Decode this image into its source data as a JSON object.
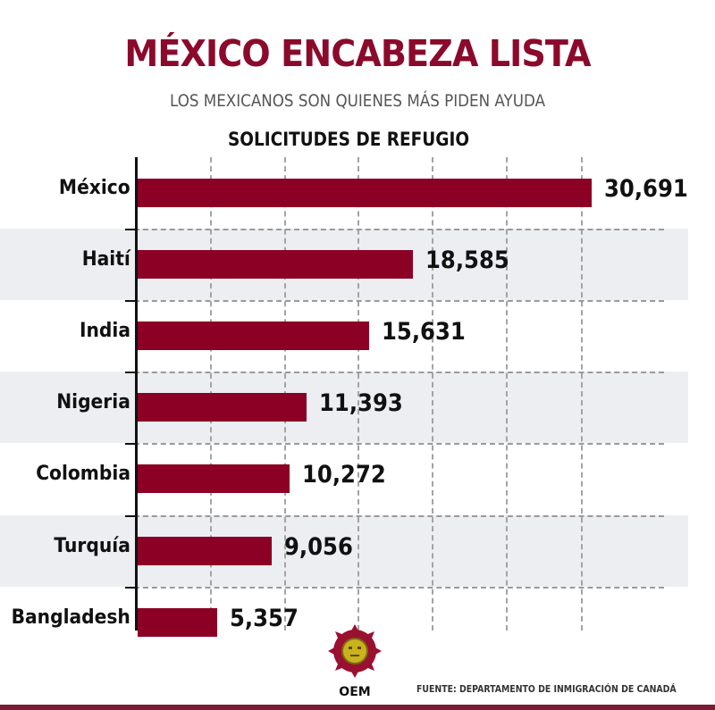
{
  "header": {
    "title": "MÉXICO ENCABEZA LISTA",
    "subtitle": "LOS MEXICANOS SON QUIENES MÁS PIDEN AYUDA",
    "chart_title": "SOLICITUDES DE REFUGIO"
  },
  "colors": {
    "title": "#8b0a2c",
    "bar": "#8b0024",
    "band": "#eceef2",
    "gridline": "#a3a3a3",
    "footer_rule": "#7a1d34"
  },
  "rows": [
    {
      "label": "México",
      "value": 30691,
      "value_label": "30,691"
    },
    {
      "label": "Haití",
      "value": 18585,
      "value_label": "18,585"
    },
    {
      "label": "India",
      "value": 15631,
      "value_label": "15,631"
    },
    {
      "label": "Nigeria",
      "value": 11393,
      "value_label": "11,393"
    },
    {
      "label": "Colombia",
      "value": 10272,
      "value_label": "10,272"
    },
    {
      "label": "Turquía",
      "value": 9056,
      "value_label": "9,056"
    },
    {
      "label": "Bangladesh",
      "value": 5357,
      "value_label": "5,357"
    }
  ],
  "footer": {
    "logo_text": "OEM",
    "source": "FUENTE: DEPARTAMENTO DE INMIGRACIÓN DE CANADÁ"
  },
  "chart_data": {
    "type": "bar",
    "orientation": "horizontal",
    "title": "SOLICITUDES DE REFUGIO",
    "suptitle": "MÉXICO ENCABEZA LISTA",
    "subtitle": "LOS MEXICANOS SON QUIENES MÁS PIDEN AYUDA",
    "categories": [
      "México",
      "Haití",
      "India",
      "Nigeria",
      "Colombia",
      "Turquía",
      "Bangladesh"
    ],
    "values": [
      30691,
      18585,
      15631,
      11393,
      10272,
      9056,
      5357
    ],
    "xlabel": "",
    "ylabel": "",
    "xlim": [
      0,
      30691
    ],
    "grid": true,
    "grid_interval_approx": 5000,
    "data_labels": true,
    "legend": null,
    "source": "FUENTE: DEPARTAMENTO DE INMIGRACIÓN DE CANADÁ"
  }
}
